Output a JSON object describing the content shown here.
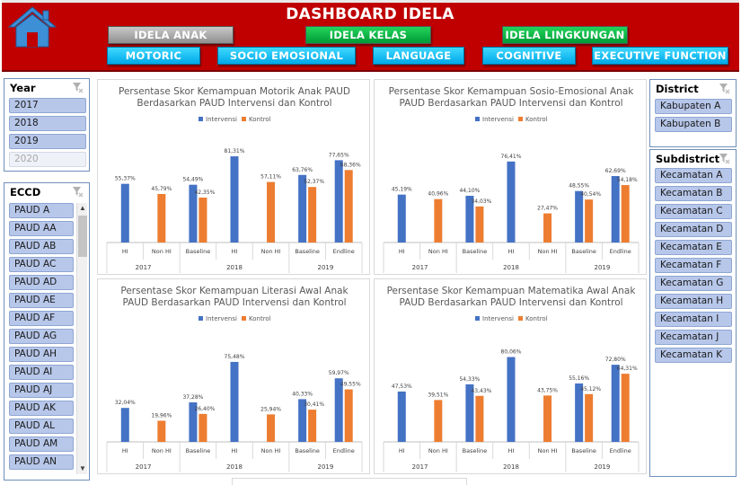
{
  "header": {
    "title": "DASHBOARD IDELA",
    "nav_buttons": [
      {
        "label": "IDELA ANAK",
        "style": "grey"
      },
      {
        "label": "IDELA KELAS",
        "style": "green"
      },
      {
        "label": "IDELA LINGKUNGAN",
        "style": "green"
      }
    ],
    "domain_buttons": [
      {
        "label": "MOTORIC"
      },
      {
        "label": "SOCIO EMOSIONAL"
      },
      {
        "label": "LANGUAGE"
      },
      {
        "label": "COGNITIVE"
      },
      {
        "label": "EXECUTIVE FUNCTION"
      }
    ]
  },
  "slicers": {
    "year": {
      "title": "Year",
      "items": [
        {
          "label": "2017",
          "enabled": true
        },
        {
          "label": "2018",
          "enabled": true
        },
        {
          "label": "2019",
          "enabled": true
        },
        {
          "label": "2020",
          "enabled": false
        }
      ]
    },
    "eccd": {
      "title": "ECCD",
      "items": [
        "PAUD A",
        "PAUD AA",
        "PAUD AB",
        "PAUD AC",
        "PAUD AD",
        "PAUD AE",
        "PAUD AF",
        "PAUD AG",
        "PAUD AH",
        "PAUD AI",
        "PAUD AJ",
        "PAUD AK",
        "PAUD AL",
        "PAUD AM",
        "PAUD AN"
      ]
    },
    "district": {
      "title": "District",
      "items": [
        "Kabupaten A",
        "Kabupaten B"
      ]
    },
    "subdistrict": {
      "title": "Subdistrict",
      "items": [
        "Kecamatan A",
        "Kecamatan B",
        "Kecamatan C",
        "Kecamatan D",
        "Kecamatan E",
        "Kecamatan F",
        "Kecamatan G",
        "Kecamatan H",
        "Kecamatan I",
        "Kecamatan J",
        "Kecamatan K"
      ]
    }
  },
  "colors": {
    "intervensi": "#4472c4",
    "kontrol": "#ed7d31",
    "header": "#c00000"
  },
  "chart_data": [
    {
      "type": "bar",
      "title": [
        "Persentase Skor Kemampuan Motorik Anak PAUD",
        "Berdasarkan PAUD Intervensi dan Kontrol"
      ],
      "series_names": [
        "Intervensi",
        "Kontrol"
      ],
      "categories": [
        "HI",
        "Non HI",
        "Baseline",
        "HI",
        "Non HI",
        "Baseline",
        "Endline"
      ],
      "groups": [
        {
          "label": "2017",
          "span": 2
        },
        {
          "label": "2018",
          "span": 3
        },
        {
          "label": "2019",
          "span": 2
        }
      ],
      "intervensi": [
        55.37,
        null,
        54.49,
        81.31,
        null,
        63.76,
        77.65
      ],
      "kontrol": [
        null,
        45.79,
        42.35,
        null,
        57.11,
        52.37,
        68.36
      ],
      "intervensi_labels": [
        "55,37%",
        "",
        "54,49%",
        "81,31%",
        "",
        "63,76%",
        "77,65%"
      ],
      "kontrol_labels": [
        "",
        "45,79%",
        "42,35%",
        "",
        "57,11%",
        "52,37%",
        "68,36%"
      ],
      "ylim": [
        0,
        100
      ]
    },
    {
      "type": "bar",
      "title": [
        "Persentase Skor Kemampuan Sosio-Emosional Anak",
        "PAUD Berdasarkan PAUD Intervensi dan Kontrol"
      ],
      "series_names": [
        "Intervensi",
        "Kontrol"
      ],
      "categories": [
        "HI",
        "Non HI",
        "Baseline",
        "HI",
        "Non HI",
        "Baseline",
        "Endline"
      ],
      "groups": [
        {
          "label": "2017",
          "span": 2
        },
        {
          "label": "2018",
          "span": 3
        },
        {
          "label": "2019",
          "span": 2
        }
      ],
      "intervensi": [
        45.19,
        null,
        44.1,
        76.41,
        null,
        48.55,
        62.69
      ],
      "kontrol": [
        null,
        40.96,
        34.03,
        null,
        27.47,
        40.54,
        54.18
      ],
      "intervensi_labels": [
        "45,19%",
        "",
        "44,10%",
        "76,41%",
        "",
        "48,55%",
        "62,69%"
      ],
      "kontrol_labels": [
        "",
        "40,96%",
        "34,03%",
        "",
        "27,47%",
        "40,54%",
        "54,18%"
      ],
      "ylim": [
        0,
        100
      ]
    },
    {
      "type": "bar",
      "title": [
        "Persentase Skor Kemampuan Literasi Awal Anak",
        "PAUD Berdasarkan PAUD Intervensi dan Kontrol"
      ],
      "series_names": [
        "Intervensi",
        "Kontrol"
      ],
      "categories": [
        "HI",
        "Non HI",
        "Baseline",
        "HI",
        "Non HI",
        "Baseline",
        "Endline"
      ],
      "groups": [
        {
          "label": "2017",
          "span": 2
        },
        {
          "label": "2018",
          "span": 3
        },
        {
          "label": "2019",
          "span": 2
        }
      ],
      "intervensi": [
        32.04,
        null,
        37.28,
        75.48,
        null,
        40.33,
        59.97
      ],
      "kontrol": [
        null,
        19.96,
        26.4,
        null,
        25.94,
        30.41,
        49.55
      ],
      "intervensi_labels": [
        "32,04%",
        "",
        "37,28%",
        "75,48%",
        "",
        "40,33%",
        "59,97%"
      ],
      "kontrol_labels": [
        "",
        "19,96%",
        "26,40%",
        "",
        "25,94%",
        "30,41%",
        "49,55%"
      ],
      "ylim": [
        0,
        100
      ]
    },
    {
      "type": "bar",
      "title": [
        "Persentase Skor Kemampuan Matematika Awal Anak",
        "PAUD Berdasarkan PAUD Intervensi dan Kontrol"
      ],
      "series_names": [
        "Intervensi",
        "Kontrol"
      ],
      "categories": [
        "HI",
        "Non HI",
        "Baseline",
        "HI",
        "Non HI",
        "Baseline",
        "Endline"
      ],
      "groups": [
        {
          "label": "2017",
          "span": 2
        },
        {
          "label": "2018",
          "span": 3
        },
        {
          "label": "2019",
          "span": 2
        }
      ],
      "intervensi": [
        47.53,
        null,
        54.33,
        80.06,
        null,
        55.16,
        72.8
      ],
      "kontrol": [
        null,
        39.51,
        43.43,
        null,
        43.75,
        45.12,
        64.31
      ],
      "intervensi_labels": [
        "47,53%",
        "",
        "54,33%",
        "80,06%",
        "",
        "55,16%",
        "72,80%"
      ],
      "kontrol_labels": [
        "",
        "39,51%",
        "43,43%",
        "",
        "43,75%",
        "45,12%",
        "64,31%"
      ],
      "ylim": [
        0,
        100
      ]
    }
  ]
}
